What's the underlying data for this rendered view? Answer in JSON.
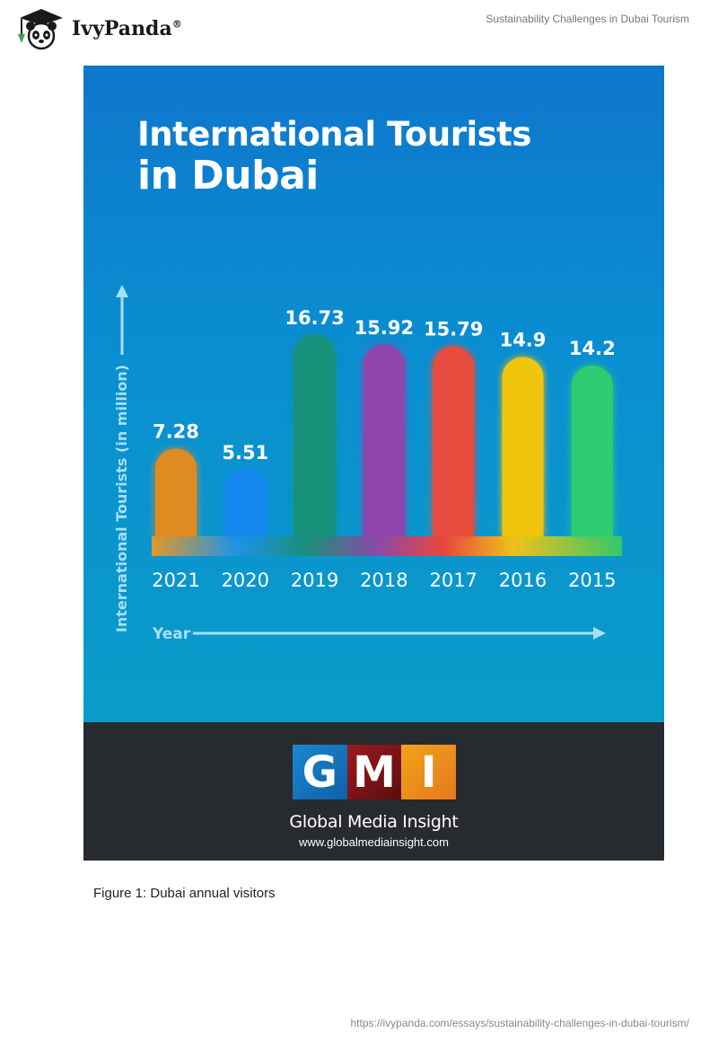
{
  "header": {
    "brand": "IvyPanda",
    "brand_mark": "®",
    "doc_title": "Sustainability Challenges in Dubai Tourism"
  },
  "infographic": {
    "title_line1": "International Tourists",
    "title_line2": "in Dubai",
    "publisher_logo": "GMI",
    "publisher_name": "Global Media Insight",
    "publisher_url": "www.globalmediainsight.com"
  },
  "chart_data": {
    "type": "bar",
    "title": "International Tourists in Dubai",
    "xlabel": "Year",
    "ylabel": "International Tourists (in million)",
    "categories": [
      "2021",
      "2020",
      "2019",
      "2018",
      "2017",
      "2016",
      "2015"
    ],
    "values": [
      7.28,
      5.51,
      16.73,
      15.92,
      15.79,
      14.9,
      14.2
    ],
    "value_labels": [
      "7.28",
      "5.51",
      "16.73",
      "15.92",
      "15.79",
      "14.9",
      "14.2"
    ],
    "colors": [
      "#e08a22",
      "#1488f0",
      "#15917a",
      "#8e44ad",
      "#e74c3c",
      "#f1c40f",
      "#2ecc71"
    ],
    "ylim": [
      0,
      20
    ],
    "grid": false
  },
  "caption": "Figure 1: Dubai annual visitors",
  "footer": {
    "url": "https://ivypanda.com/essays/sustainability-challenges-in-dubai-tourism/"
  }
}
